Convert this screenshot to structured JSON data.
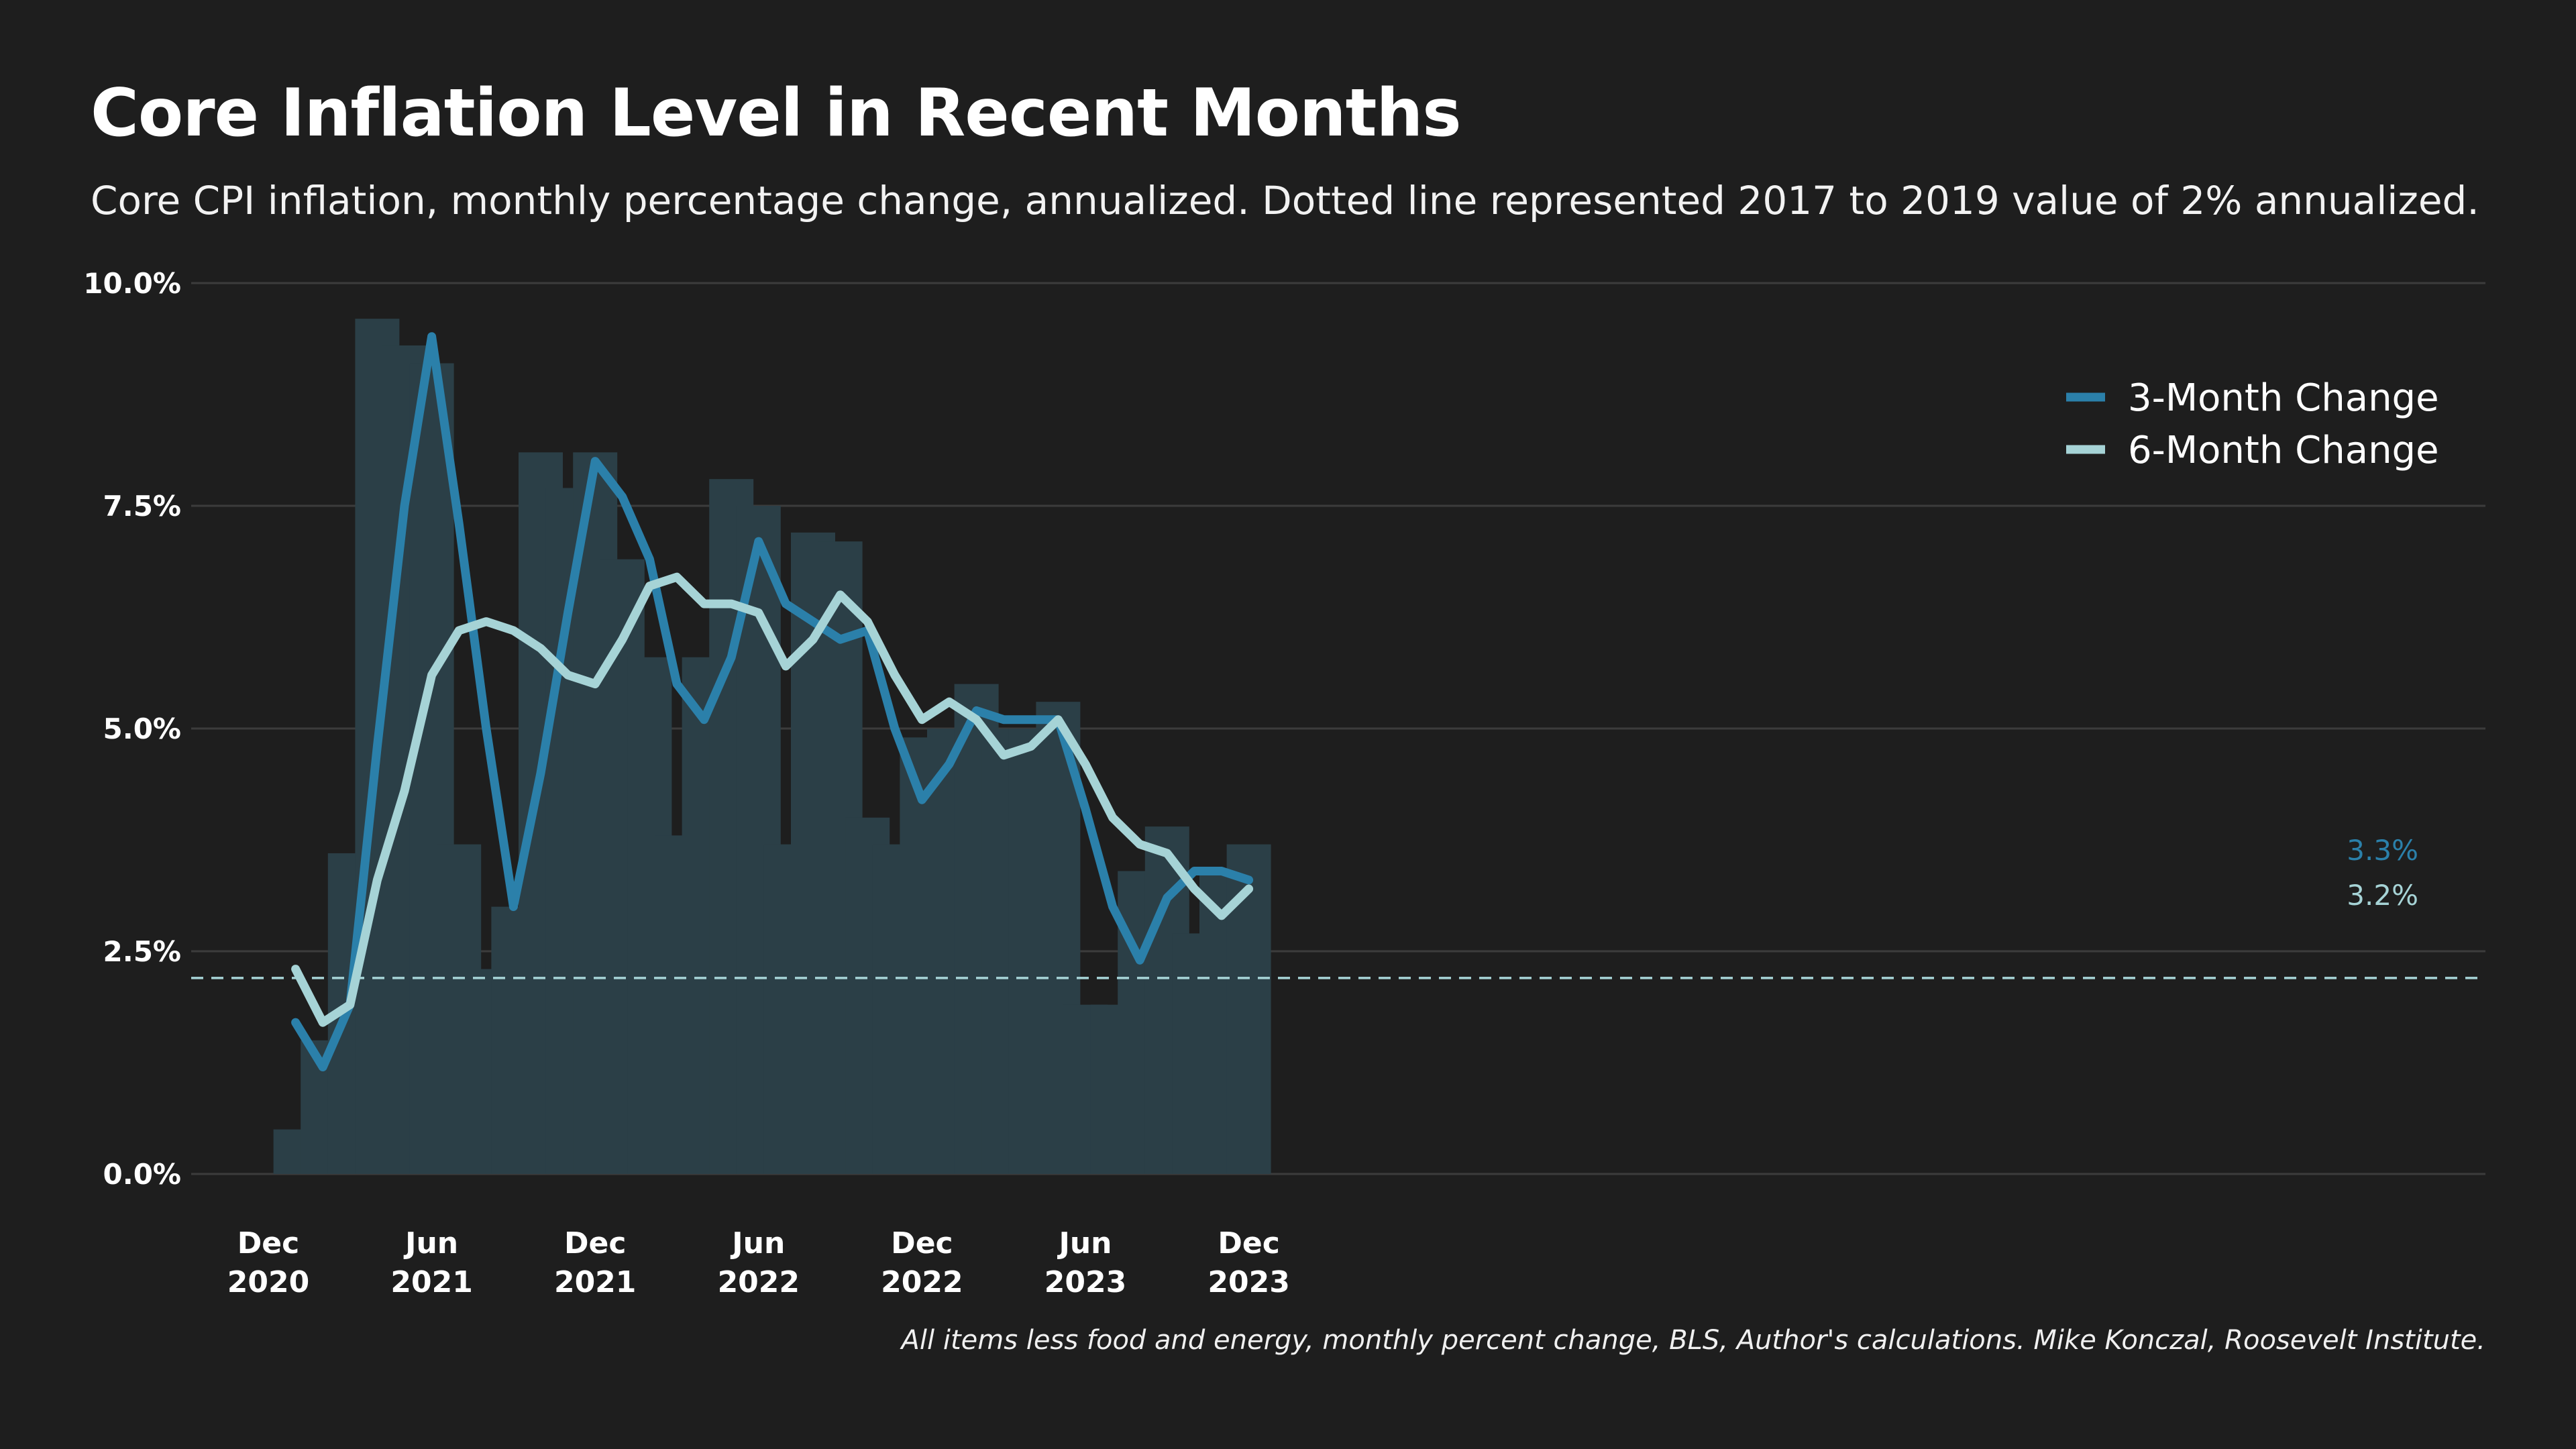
{
  "chart_data": {
    "type": "bar",
    "title": "Core Inflation Level in Recent Months",
    "subtitle": "Core CPI inflation, monthly percentage change, annualized. Dotted line represented 2017 to 2019 value of 2% annualized.",
    "source": "All items less food and energy, monthly percent change, BLS, Author's calculations. Mike Konczal, Roosevelt Institute.",
    "ylim": [
      0,
      10
    ],
    "y_ticks": [
      {
        "value": 0,
        "label": "0.0%"
      },
      {
        "value": 2.5,
        "label": "2.5%"
      },
      {
        "value": 5,
        "label": "5.0%"
      },
      {
        "value": 7.5,
        "label": "7.5%"
      },
      {
        "value": 10,
        "label": "10.0%"
      }
    ],
    "x_ticks": [
      {
        "month_index": 0,
        "label_line1": "Dec",
        "label_line2": "2020"
      },
      {
        "month_index": 6,
        "label_line1": "Jun",
        "label_line2": "2021"
      },
      {
        "month_index": 12,
        "label_line1": "Dec",
        "label_line2": "2021"
      },
      {
        "month_index": 18,
        "label_line1": "Jun",
        "label_line2": "2022"
      },
      {
        "month_index": 24,
        "label_line1": "Dec",
        "label_line2": "2022"
      },
      {
        "month_index": 30,
        "label_line1": "Jun",
        "label_line2": "2023"
      },
      {
        "month_index": 36,
        "label_line1": "Dec",
        "label_line2": "2023"
      }
    ],
    "categories": [
      "Jan 2021",
      "Feb 2021",
      "Mar 2021",
      "Apr 2021",
      "May 2021",
      "Jun 2021",
      "Jul 2021",
      "Aug 2021",
      "Sep 2021",
      "Oct 2021",
      "Nov 2021",
      "Dec 2021",
      "Jan 2022",
      "Feb 2022",
      "Mar 2022",
      "Apr 2022",
      "May 2022",
      "Jun 2022",
      "Jul 2022",
      "Aug 2022",
      "Sep 2022",
      "Oct 2022",
      "Nov 2022",
      "Dec 2022",
      "Jan 2023",
      "Feb 2023",
      "Mar 2023",
      "Apr 2023",
      "May 2023",
      "Jun 2023",
      "Jul 2023",
      "Aug 2023",
      "Sep 2023",
      "Oct 2023",
      "Nov 2023",
      "Dec 2023"
    ],
    "bars": {
      "color": "#2b3f47",
      "values": [
        0.5,
        1.5,
        3.6,
        9.6,
        9.3,
        9.1,
        3.7,
        2.3,
        3.0,
        8.1,
        7.7,
        8.1,
        6.9,
        5.8,
        3.8,
        5.8,
        7.8,
        7.5,
        3.7,
        7.2,
        7.1,
        4.0,
        3.7,
        4.9,
        5.0,
        5.5,
        5.0,
        5.0,
        5.3,
        1.9,
        1.9,
        3.4,
        3.9,
        2.7,
        3.4,
        3.7
      ]
    },
    "series": [
      {
        "name": "3-Month Change",
        "color": "#2b80aa",
        "start_month_index": 1,
        "values": [
          1.7,
          1.2,
          1.9,
          4.8,
          7.5,
          9.4,
          7.3,
          5.0,
          3.0,
          4.5,
          6.3,
          8.0,
          7.6,
          6.9,
          5.5,
          5.1,
          5.8,
          7.1,
          6.4,
          6.2,
          6.0,
          6.1,
          5.0,
          4.2,
          4.6,
          5.2,
          5.1,
          5.1,
          5.1,
          4.1,
          3.0,
          2.4,
          3.1,
          3.4,
          3.4,
          3.3
        ],
        "end_label": "3.3%"
      },
      {
        "name": "6-Month Change",
        "color": "#a6d3d6",
        "start_month_index": 1,
        "values": [
          2.3,
          1.7,
          1.9,
          3.3,
          4.3,
          5.6,
          6.1,
          6.2,
          6.1,
          5.9,
          5.6,
          5.5,
          6.0,
          6.6,
          6.7,
          6.4,
          6.4,
          6.3,
          5.7,
          6.0,
          6.5,
          6.2,
          5.6,
          5.1,
          5.3,
          5.1,
          4.7,
          4.8,
          5.1,
          4.6,
          4.0,
          3.7,
          3.6,
          3.2,
          2.9,
          3.2
        ],
        "end_label": "3.2%"
      }
    ],
    "reference_line": {
      "value": 2.2,
      "style": "dashed",
      "color": "#a6d3d6"
    },
    "legend": {
      "placement": "top-right"
    },
    "grid": true
  }
}
